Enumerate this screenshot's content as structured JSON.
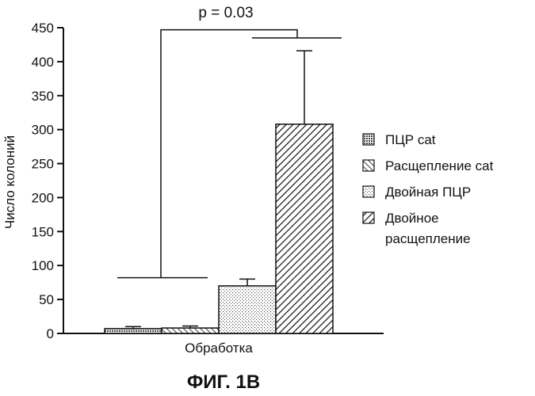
{
  "chart_data": {
    "type": "bar",
    "title": "",
    "xlabel": "Обработка",
    "ylabel": "Число колоний",
    "ylim": [
      0,
      450
    ],
    "yticks": [
      "0",
      "50",
      "100",
      "150",
      "200",
      "250",
      "300",
      "350",
      "400",
      "450"
    ],
    "categories": [
      "Обработка"
    ],
    "series": [
      {
        "name": "ПЦР cat",
        "values": [
          7
        ],
        "error": [
          3
        ],
        "pattern": "dense-dots"
      },
      {
        "name": "Расщепление cat",
        "values": [
          8
        ],
        "error": [
          3
        ],
        "pattern": "back-diagonal"
      },
      {
        "name": "Двойная ПЦР",
        "values": [
          70
        ],
        "error": [
          10
        ],
        "pattern": "sparse-dots"
      },
      {
        "name": "Двойное расщепление",
        "values": [
          308
        ],
        "error": [
          108
        ],
        "pattern": "forward-diagonal"
      }
    ],
    "legend": {
      "placement": "right",
      "lines": [
        [
          "ПЦР cat"
        ],
        [
          "Расщепление cat"
        ],
        [
          "Двойная ПЦР"
        ],
        [
          "Двойное",
          "расщепление"
        ]
      ]
    },
    "annotation": {
      "text": "p = 0.03",
      "left_level": 82,
      "right_level": 435,
      "top_level": 447
    }
  },
  "figure_label": "ФИГ. 1В"
}
